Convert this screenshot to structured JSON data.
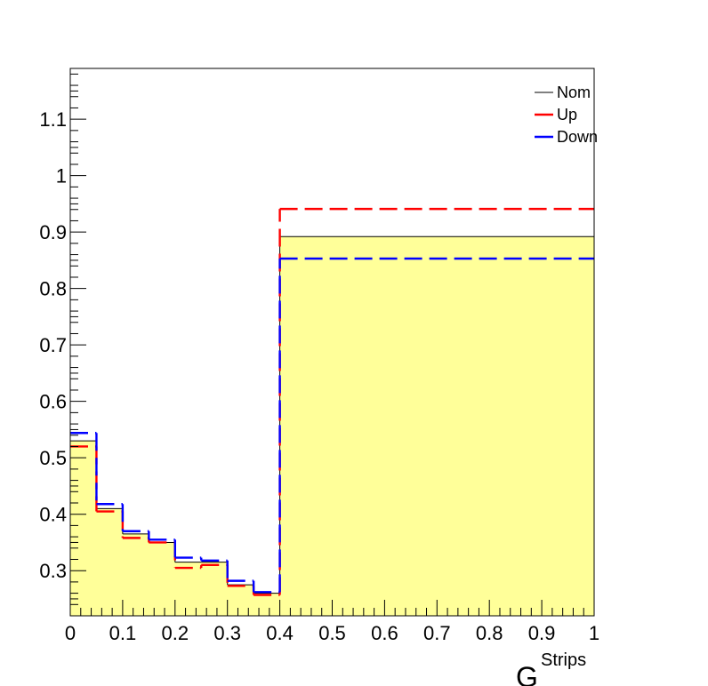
{
  "chart_data": {
    "type": "line",
    "title": "",
    "xlabel": "G",
    "xlabel_superscript": "Strips",
    "xlabel_subscript": "",
    "ylabel": "",
    "xlim": [
      0,
      1
    ],
    "ylim": [
      0.22,
      1.19
    ],
    "bin_edges": [
      0,
      0.05,
      0.1,
      0.15,
      0.2,
      0.25,
      0.3,
      0.35,
      0.4,
      1.0
    ],
    "x_ticks": [
      0,
      0.1,
      0.2,
      0.3,
      0.4,
      0.5,
      0.6,
      0.7,
      0.8,
      0.9,
      1
    ],
    "x_tick_labels": [
      "0",
      "0.1",
      "0.2",
      "0.3",
      "0.4",
      "0.5",
      "0.6",
      "0.7",
      "0.8",
      "0.9",
      "1"
    ],
    "y_ticks": [
      0.3,
      0.4,
      0.5,
      0.6,
      0.7,
      0.8,
      0.9,
      1.0,
      1.1
    ],
    "y_tick_labels": [
      "0.3",
      "0.4",
      "0.5",
      "0.6",
      "0.7",
      "0.8",
      "0.9",
      "1",
      "1.1"
    ],
    "grid": false,
    "legend_position": "top-right",
    "series": [
      {
        "name": "Nom",
        "color": "#000000",
        "fill": "#ffff99",
        "style": "solid",
        "values": [
          0.53,
          0.41,
          0.365,
          0.35,
          0.315,
          0.315,
          0.275,
          0.26,
          0.892
        ]
      },
      {
        "name": "Up",
        "color": "#ff0000",
        "style": "dashed",
        "values": [
          0.52,
          0.405,
          0.358,
          0.35,
          0.305,
          0.31,
          0.273,
          0.257,
          0.941
        ]
      },
      {
        "name": "Down",
        "color": "#0000ff",
        "style": "dashed",
        "values": [
          0.544,
          0.418,
          0.37,
          0.355,
          0.323,
          0.318,
          0.282,
          0.262,
          0.853
        ]
      }
    ]
  }
}
